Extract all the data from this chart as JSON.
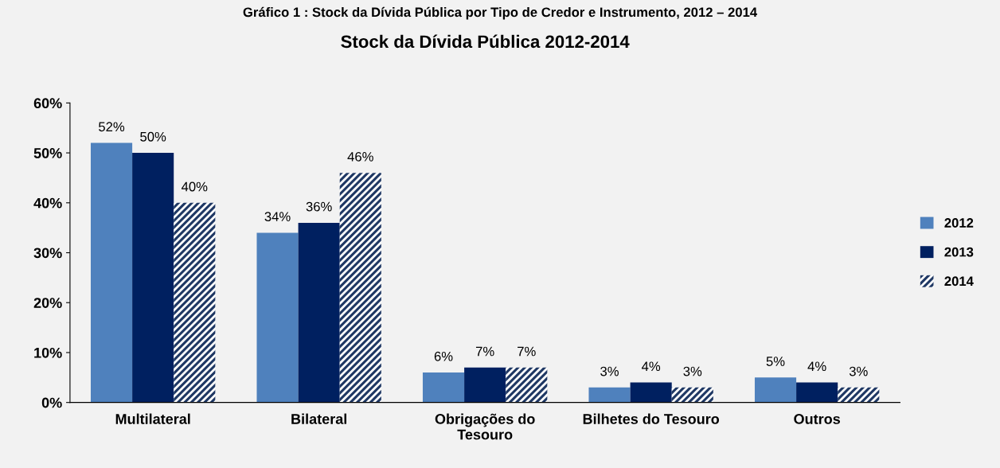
{
  "chart_data": {
    "type": "bar",
    "title": "Stock da Dívida Pública 2012-2014",
    "annotations": [
      "Gráfico 1 : Stock da Dívida Pública por Tipo de Credor e Instrumento, 2012 – 2014"
    ],
    "categories": [
      "Multilateral",
      "Bilateral",
      "Obrigações do Tesouro",
      "Bilhetes do Tesouro",
      "Outros"
    ],
    "series": [
      {
        "name": "2012",
        "color": "#4f81bd",
        "values": [
          52,
          34,
          6,
          3,
          5
        ],
        "value_labels": [
          "52%",
          "34%",
          "6%",
          "3%",
          "5%"
        ]
      },
      {
        "name": "2013",
        "color": "#002060",
        "values": [
          50,
          36,
          7,
          4,
          4
        ],
        "value_labels": [
          "50%",
          "36%",
          "7%",
          "4%",
          "4%"
        ]
      },
      {
        "name": "2014",
        "color": "#1f3864",
        "values": [
          40,
          46,
          7,
          3,
          3
        ],
        "value_labels": [
          "40%",
          "46%",
          "7%",
          "3%",
          "3%"
        ]
      }
    ],
    "ylim": [
      0,
      60
    ],
    "yticks": [
      {
        "value": 0,
        "label": "0%"
      },
      {
        "value": 10,
        "label": "10%"
      },
      {
        "value": 20,
        "label": "20%"
      },
      {
        "value": 30,
        "label": "30%"
      },
      {
        "value": 40,
        "label": "40%"
      },
      {
        "value": 50,
        "label": "50%"
      },
      {
        "value": 60,
        "label": "60%"
      }
    ],
    "grid": false,
    "legend": "right"
  }
}
